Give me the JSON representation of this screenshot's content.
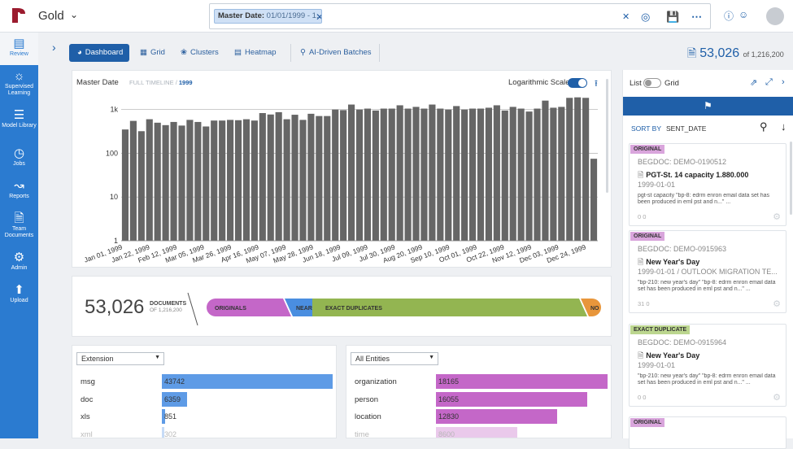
{
  "header": {
    "project": "Gold",
    "filter_chip_key": "Master Date:",
    "filter_chip_value": "01/01/1999 - 1..."
  },
  "sidebar": {
    "items": [
      {
        "label": "Review",
        "icon": "bar-chart-icon"
      },
      {
        "label": "Supervised Learning",
        "icon": "lightbulb-icon"
      },
      {
        "label": "Model Library",
        "icon": "library-icon"
      },
      {
        "label": "Jobs",
        "icon": "clock-icon"
      },
      {
        "label": "Reports",
        "icon": "line-chart-icon"
      },
      {
        "label": "Team Documents",
        "icon": "document-icon"
      },
      {
        "label": "Admin",
        "icon": "gear-icon"
      },
      {
        "label": "Upload",
        "icon": "upload-icon"
      }
    ]
  },
  "tabs": [
    {
      "label": "Dashboard",
      "icon": "dashboard-icon"
    },
    {
      "label": "Grid",
      "icon": "grid-icon"
    },
    {
      "label": "Clusters",
      "icon": "clusters-icon"
    },
    {
      "label": "Heatmap",
      "icon": "heatmap-icon"
    },
    {
      "label": "AI-Driven Batches",
      "icon": "pin-icon"
    }
  ],
  "doc_count": {
    "count": "53,026",
    "of": "of 1,216,200"
  },
  "timeline": {
    "title": "Master Date",
    "crumb_full": "FULL TIMELINE",
    "crumb_sep": "/",
    "crumb_current": "1999",
    "log_label": "Logarithmic Scale",
    "log_scale_on": true
  },
  "chart_data": {
    "type": "bar",
    "y_scale": "log",
    "ylim": [
      1,
      3000
    ],
    "yticks": [
      "1",
      "10",
      "100",
      "1k"
    ],
    "x_ticks": [
      "Jan 01, 1999",
      "Jan 22, 1999",
      "Feb 12, 1999",
      "Mar 05, 1999",
      "Mar 26, 1999",
      "Apr 16, 1999",
      "May 07, 1999",
      "May 28, 1999",
      "Jun 18, 1999",
      "Jul 09, 1999",
      "Jul 30, 1999",
      "Aug 20, 1999",
      "Sep 10, 1999",
      "Oct 01, 1999",
      "Oct 22, 1999",
      "Nov 12, 1999",
      "Dec 03, 1999",
      "Dec 24, 1999"
    ],
    "values": [
      350,
      550,
      320,
      600,
      500,
      440,
      520,
      430,
      580,
      520,
      410,
      560,
      560,
      580,
      570,
      600,
      560,
      830,
      770,
      870,
      600,
      760,
      580,
      800,
      710,
      710,
      1000,
      970,
      1300,
      1000,
      1050,
      950,
      1050,
      1050,
      1250,
      1050,
      1150,
      1050,
      1300,
      1050,
      1000,
      1200,
      1000,
      1050,
      1050,
      1100,
      1250,
      950,
      1150,
      1050,
      900,
      1050,
      1600,
      1100,
      1150,
      1850,
      1900,
      1850,
      75
    ],
    "color": "#666666"
  },
  "summary": {
    "count": "53,026",
    "label": "DOCUMENTS",
    "of": "OF 1,216,200",
    "segments": [
      {
        "label": "ORIGINALS",
        "color": "#c467c8"
      },
      {
        "label": "NEAR",
        "color": "#4a8ee0"
      },
      {
        "label": "EXACT DUPLICATES",
        "color": "#93b551"
      },
      {
        "label": "NO",
        "color": "#e8963b"
      }
    ]
  },
  "extension": {
    "dropdown": "Extension",
    "max": 43742,
    "color": "#5e9be6",
    "rows": [
      {
        "label": "msg",
        "value": 43742
      },
      {
        "label": "doc",
        "value": 6359
      },
      {
        "label": "xls",
        "value": 851
      },
      {
        "label": "xml",
        "value": 302
      }
    ]
  },
  "entities": {
    "dropdown": "All Entities",
    "max": 18165,
    "color": "#c467c8",
    "rows": [
      {
        "label": "organization",
        "value": 18165
      },
      {
        "label": "person",
        "value": 16055
      },
      {
        "label": "location",
        "value": 12830
      },
      {
        "label": "time",
        "value": 8600
      }
    ]
  },
  "right_panel": {
    "list_label": "List",
    "grid_label": "Grid",
    "sort_by": "SORT BY",
    "sort_field": "SENT_DATE",
    "docs": [
      {
        "badge": "ORIGINAL",
        "badge_color": "#d9a5dc",
        "begdoc": "BEGDOC: DEMO-0190512",
        "title": "PGT-St. 14 capacity 1.880.000",
        "date": "1999-01-01",
        "snippet": "pgt-st capacity \"bp-8: edrm enron email data set has been produced in eml pst and n...\" ...",
        "footer": "0  0"
      },
      {
        "badge": "ORIGINAL",
        "badge_color": "#d9a5dc",
        "begdoc": "BEGDOC: DEMO-0915963",
        "title": "New Year's Day",
        "date": "1999-01-01 / OUTLOOK MIGRATION TE...",
        "snippet": "\"bp-210: new year's day\" \"bp-8: edrm enron email data set has been produced in eml pst and n...\" ...",
        "footer": "31  0"
      },
      {
        "badge": "EXACT DUPLICATE",
        "badge_color": "#bcd68f",
        "begdoc": "BEGDOC: DEMO-0915964",
        "title": "New Year's Day",
        "date": "1999-01-01",
        "snippet": "\"bp-210: new year's day\" \"bp-8: edrm enron email data set has been produced in eml pst and n...\" ...",
        "footer": "0  0"
      },
      {
        "badge": "ORIGINAL",
        "badge_color": "#d9a5dc",
        "begdoc": "",
        "title": "",
        "date": "",
        "snippet": "",
        "footer": ""
      }
    ]
  }
}
